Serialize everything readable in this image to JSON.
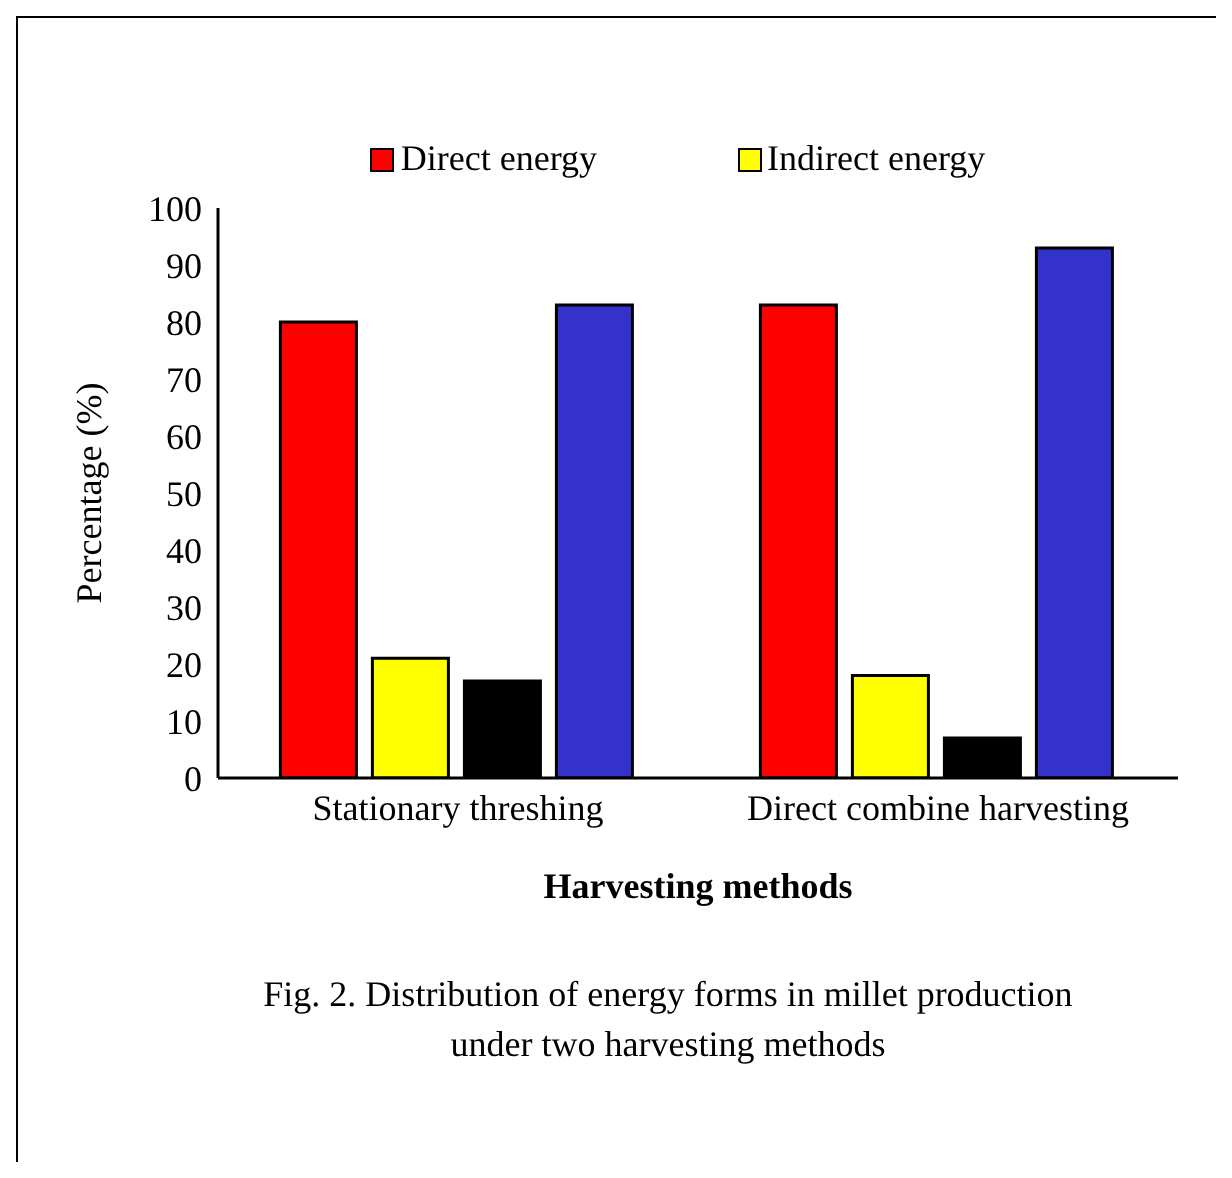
{
  "chart_data": {
    "type": "bar",
    "xlabel": "Harvesting methods",
    "ylabel": "Percentage (%)",
    "categories": [
      "Stationary threshing",
      "Direct combine harvesting"
    ],
    "series": [
      {
        "name": "Direct energy",
        "color": "#ff0000",
        "values": [
          80,
          83
        ]
      },
      {
        "name": "Indirect energy",
        "color": "#ffff00",
        "values": [
          21,
          18
        ]
      },
      {
        "color": "#000000",
        "values": [
          17,
          7
        ]
      },
      {
        "color": "#3333cc",
        "values": [
          83,
          93
        ]
      }
    ],
    "ylim": [
      0,
      100
    ],
    "yticks": [
      0,
      10,
      20,
      30,
      40,
      50,
      60,
      70,
      80,
      90,
      100
    ],
    "grid": false,
    "legend": "top",
    "annotations": [
      "Fig. 2. Distribution of energy  forms in millet production under two harvesting methods"
    ]
  }
}
